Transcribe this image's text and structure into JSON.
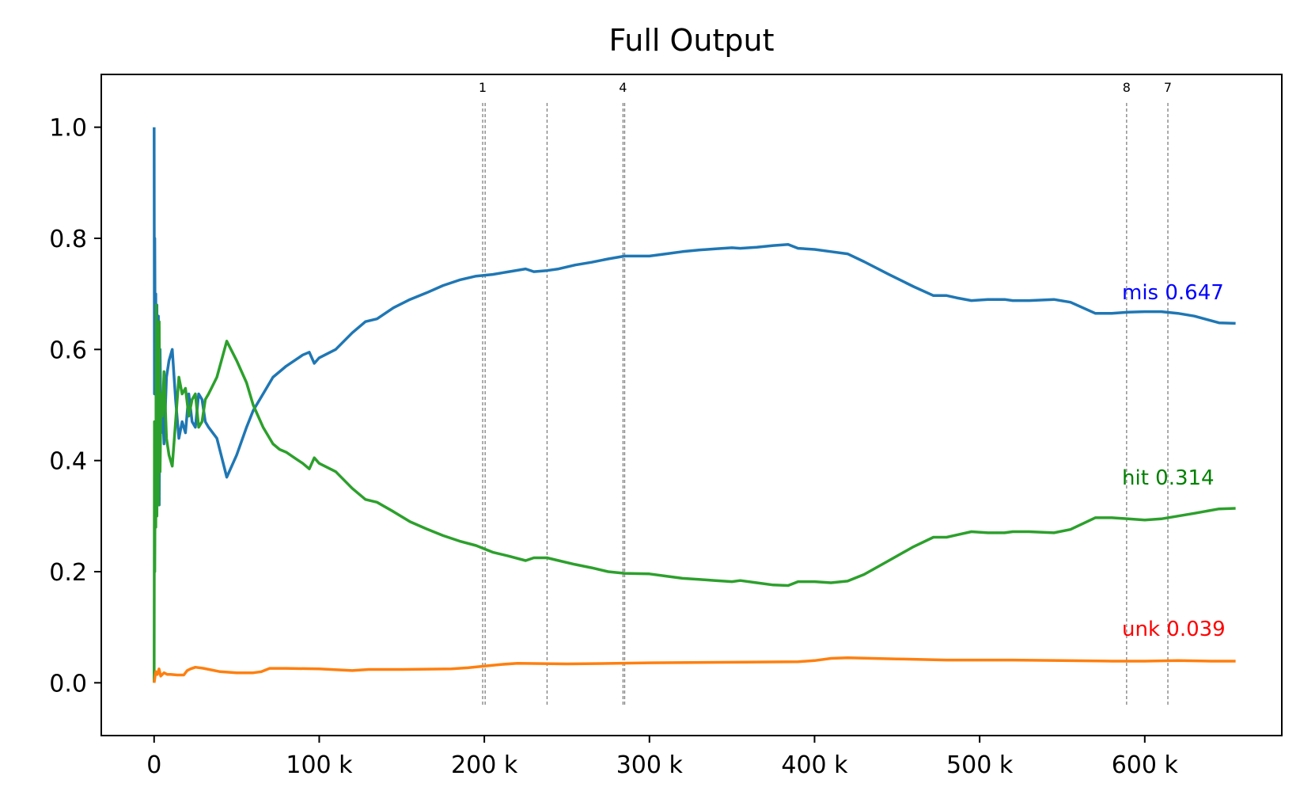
{
  "chart_data": {
    "type": "line",
    "title": "Full Output",
    "xlabel": "",
    "ylabel": "",
    "xlim": [
      -32000,
      683000
    ],
    "ylim": [
      -0.095,
      1.095
    ],
    "grid": false,
    "x_ticks": [
      {
        "value": 0,
        "label": "0"
      },
      {
        "value": 100000,
        "label": "100 k"
      },
      {
        "value": 200000,
        "label": "200 k"
      },
      {
        "value": 300000,
        "label": "300 k"
      },
      {
        "value": 400000,
        "label": "400 k"
      },
      {
        "value": 500000,
        "label": "500 k"
      },
      {
        "value": 600000,
        "label": "600 k"
      }
    ],
    "y_ticks": [
      {
        "value": 0.0,
        "label": "0.0"
      },
      {
        "value": 0.2,
        "label": "0.2"
      },
      {
        "value": 0.4,
        "label": "0.4"
      },
      {
        "value": 0.6,
        "label": "0.6"
      },
      {
        "value": 0.8,
        "label": "0.8"
      },
      {
        "value": 1.0,
        "label": "1.0"
      }
    ],
    "vertical_markers": [
      {
        "x": 199000,
        "label": "1"
      },
      {
        "x": 200500,
        "label": ""
      },
      {
        "x": 238000,
        "label": ""
      },
      {
        "x": 284000,
        "label": "4"
      },
      {
        "x": 285000,
        "label": ""
      },
      {
        "x": 589000,
        "label": "8"
      },
      {
        "x": 614000,
        "label": "7"
      }
    ],
    "series": [
      {
        "name": "mis",
        "color": "#1f77b4",
        "end_label": "mis 0.647",
        "end_label_color": "#0000ff",
        "x": [
          0,
          200,
          400,
          700,
          1000,
          1300,
          1700,
          2100,
          2600,
          3100,
          3600,
          4200,
          5000,
          6000,
          7500,
          9000,
          11000,
          13000,
          15000,
          17000,
          19000,
          21000,
          23000,
          25000,
          27000,
          29000,
          31000,
          33000,
          38000,
          44000,
          50000,
          56000,
          60000,
          66000,
          72000,
          76000,
          80000,
          85000,
          90000,
          94000,
          97000,
          100000,
          110000,
          120000,
          128000,
          135000,
          145000,
          155000,
          165000,
          175000,
          185000,
          195000,
          205000,
          215000,
          225000,
          230000,
          238000,
          245000,
          255000,
          265000,
          275000,
          285000,
          300000,
          310000,
          320000,
          330000,
          340000,
          350000,
          355000,
          365000,
          375000,
          384000,
          390000,
          400000,
          410000,
          420000,
          430000,
          445000,
          460000,
          472000,
          480000,
          486000,
          495000,
          505000,
          515000,
          520000,
          530000,
          545000,
          555000,
          570000,
          580000,
          590000,
          600000,
          610000,
          620000,
          630000,
          645000,
          655000
        ],
        "y": [
          1.0,
          0.52,
          0.8,
          0.55,
          0.7,
          0.3,
          0.68,
          0.35,
          0.66,
          0.32,
          0.6,
          0.45,
          0.5,
          0.43,
          0.55,
          0.58,
          0.6,
          0.51,
          0.44,
          0.47,
          0.45,
          0.52,
          0.47,
          0.46,
          0.52,
          0.51,
          0.47,
          0.46,
          0.44,
          0.37,
          0.41,
          0.46,
          0.49,
          0.52,
          0.55,
          0.56,
          0.57,
          0.58,
          0.59,
          0.595,
          0.575,
          0.585,
          0.6,
          0.63,
          0.65,
          0.655,
          0.675,
          0.69,
          0.702,
          0.715,
          0.725,
          0.732,
          0.735,
          0.74,
          0.745,
          0.74,
          0.742,
          0.745,
          0.752,
          0.757,
          0.763,
          0.768,
          0.768,
          0.772,
          0.776,
          0.779,
          0.781,
          0.783,
          0.782,
          0.784,
          0.787,
          0.789,
          0.782,
          0.78,
          0.776,
          0.772,
          0.758,
          0.735,
          0.713,
          0.697,
          0.697,
          0.693,
          0.688,
          0.69,
          0.69,
          0.688,
          0.688,
          0.69,
          0.685,
          0.665,
          0.665,
          0.667,
          0.668,
          0.668,
          0.665,
          0.66,
          0.648,
          0.647
        ]
      },
      {
        "name": "hit",
        "color": "#2ca02c",
        "end_label": "hit 0.314",
        "end_label_color": "#008000",
        "x": [
          0,
          200,
          400,
          700,
          1000,
          1300,
          1700,
          2100,
          2600,
          3100,
          3600,
          4200,
          5000,
          6000,
          7500,
          9000,
          11000,
          13000,
          15000,
          17000,
          19000,
          21000,
          23000,
          25000,
          27000,
          29000,
          31000,
          33000,
          38000,
          44000,
          50000,
          56000,
          60000,
          66000,
          72000,
          76000,
          80000,
          85000,
          90000,
          94000,
          97000,
          100000,
          110000,
          120000,
          128000,
          135000,
          145000,
          155000,
          165000,
          175000,
          185000,
          195000,
          205000,
          215000,
          225000,
          230000,
          238000,
          245000,
          255000,
          265000,
          275000,
          285000,
          300000,
          310000,
          320000,
          330000,
          340000,
          350000,
          355000,
          365000,
          375000,
          384000,
          390000,
          400000,
          410000,
          420000,
          430000,
          445000,
          460000,
          472000,
          480000,
          486000,
          495000,
          505000,
          515000,
          520000,
          530000,
          545000,
          555000,
          570000,
          580000,
          590000,
          600000,
          610000,
          620000,
          630000,
          645000,
          655000
        ],
        "y": [
          0.0,
          0.47,
          0.2,
          0.44,
          0.28,
          0.68,
          0.3,
          0.62,
          0.32,
          0.65,
          0.38,
          0.52,
          0.48,
          0.56,
          0.44,
          0.41,
          0.39,
          0.47,
          0.55,
          0.52,
          0.53,
          0.48,
          0.51,
          0.52,
          0.46,
          0.47,
          0.51,
          0.52,
          0.55,
          0.615,
          0.58,
          0.54,
          0.5,
          0.46,
          0.43,
          0.42,
          0.415,
          0.405,
          0.395,
          0.385,
          0.405,
          0.395,
          0.38,
          0.35,
          0.33,
          0.325,
          0.308,
          0.29,
          0.277,
          0.265,
          0.255,
          0.247,
          0.235,
          0.228,
          0.22,
          0.225,
          0.225,
          0.22,
          0.213,
          0.207,
          0.2,
          0.197,
          0.196,
          0.192,
          0.188,
          0.186,
          0.184,
          0.182,
          0.184,
          0.18,
          0.176,
          0.175,
          0.182,
          0.182,
          0.18,
          0.183,
          0.195,
          0.22,
          0.245,
          0.262,
          0.262,
          0.266,
          0.272,
          0.27,
          0.27,
          0.272,
          0.272,
          0.27,
          0.276,
          0.297,
          0.297,
          0.295,
          0.293,
          0.295,
          0.3,
          0.305,
          0.313,
          0.314
        ]
      },
      {
        "name": "unk",
        "color": "#ff7f0e",
        "end_label": "unk 0.039",
        "end_label_color": "#ff0000",
        "x": [
          0,
          1000,
          2000,
          3000,
          4000,
          6000,
          8000,
          10000,
          14000,
          18000,
          20000,
          22000,
          25000,
          30000,
          40000,
          50000,
          60000,
          65000,
          70000,
          80000,
          100000,
          120000,
          130000,
          150000,
          180000,
          190000,
          200000,
          210000,
          220000,
          250000,
          280000,
          300000,
          350000,
          390000,
          400000,
          410000,
          420000,
          450000,
          480000,
          500000,
          520000,
          550000,
          580000,
          600000,
          620000,
          640000,
          655000
        ],
        "y": [
          0.0,
          0.02,
          0.015,
          0.025,
          0.012,
          0.018,
          0.015,
          0.015,
          0.014,
          0.014,
          0.022,
          0.025,
          0.028,
          0.026,
          0.02,
          0.018,
          0.018,
          0.02,
          0.026,
          0.026,
          0.025,
          0.022,
          0.024,
          0.024,
          0.025,
          0.027,
          0.03,
          0.033,
          0.035,
          0.034,
          0.035,
          0.036,
          0.037,
          0.038,
          0.04,
          0.044,
          0.045,
          0.043,
          0.041,
          0.041,
          0.041,
          0.04,
          0.039,
          0.039,
          0.04,
          0.039,
          0.039
        ]
      }
    ]
  }
}
